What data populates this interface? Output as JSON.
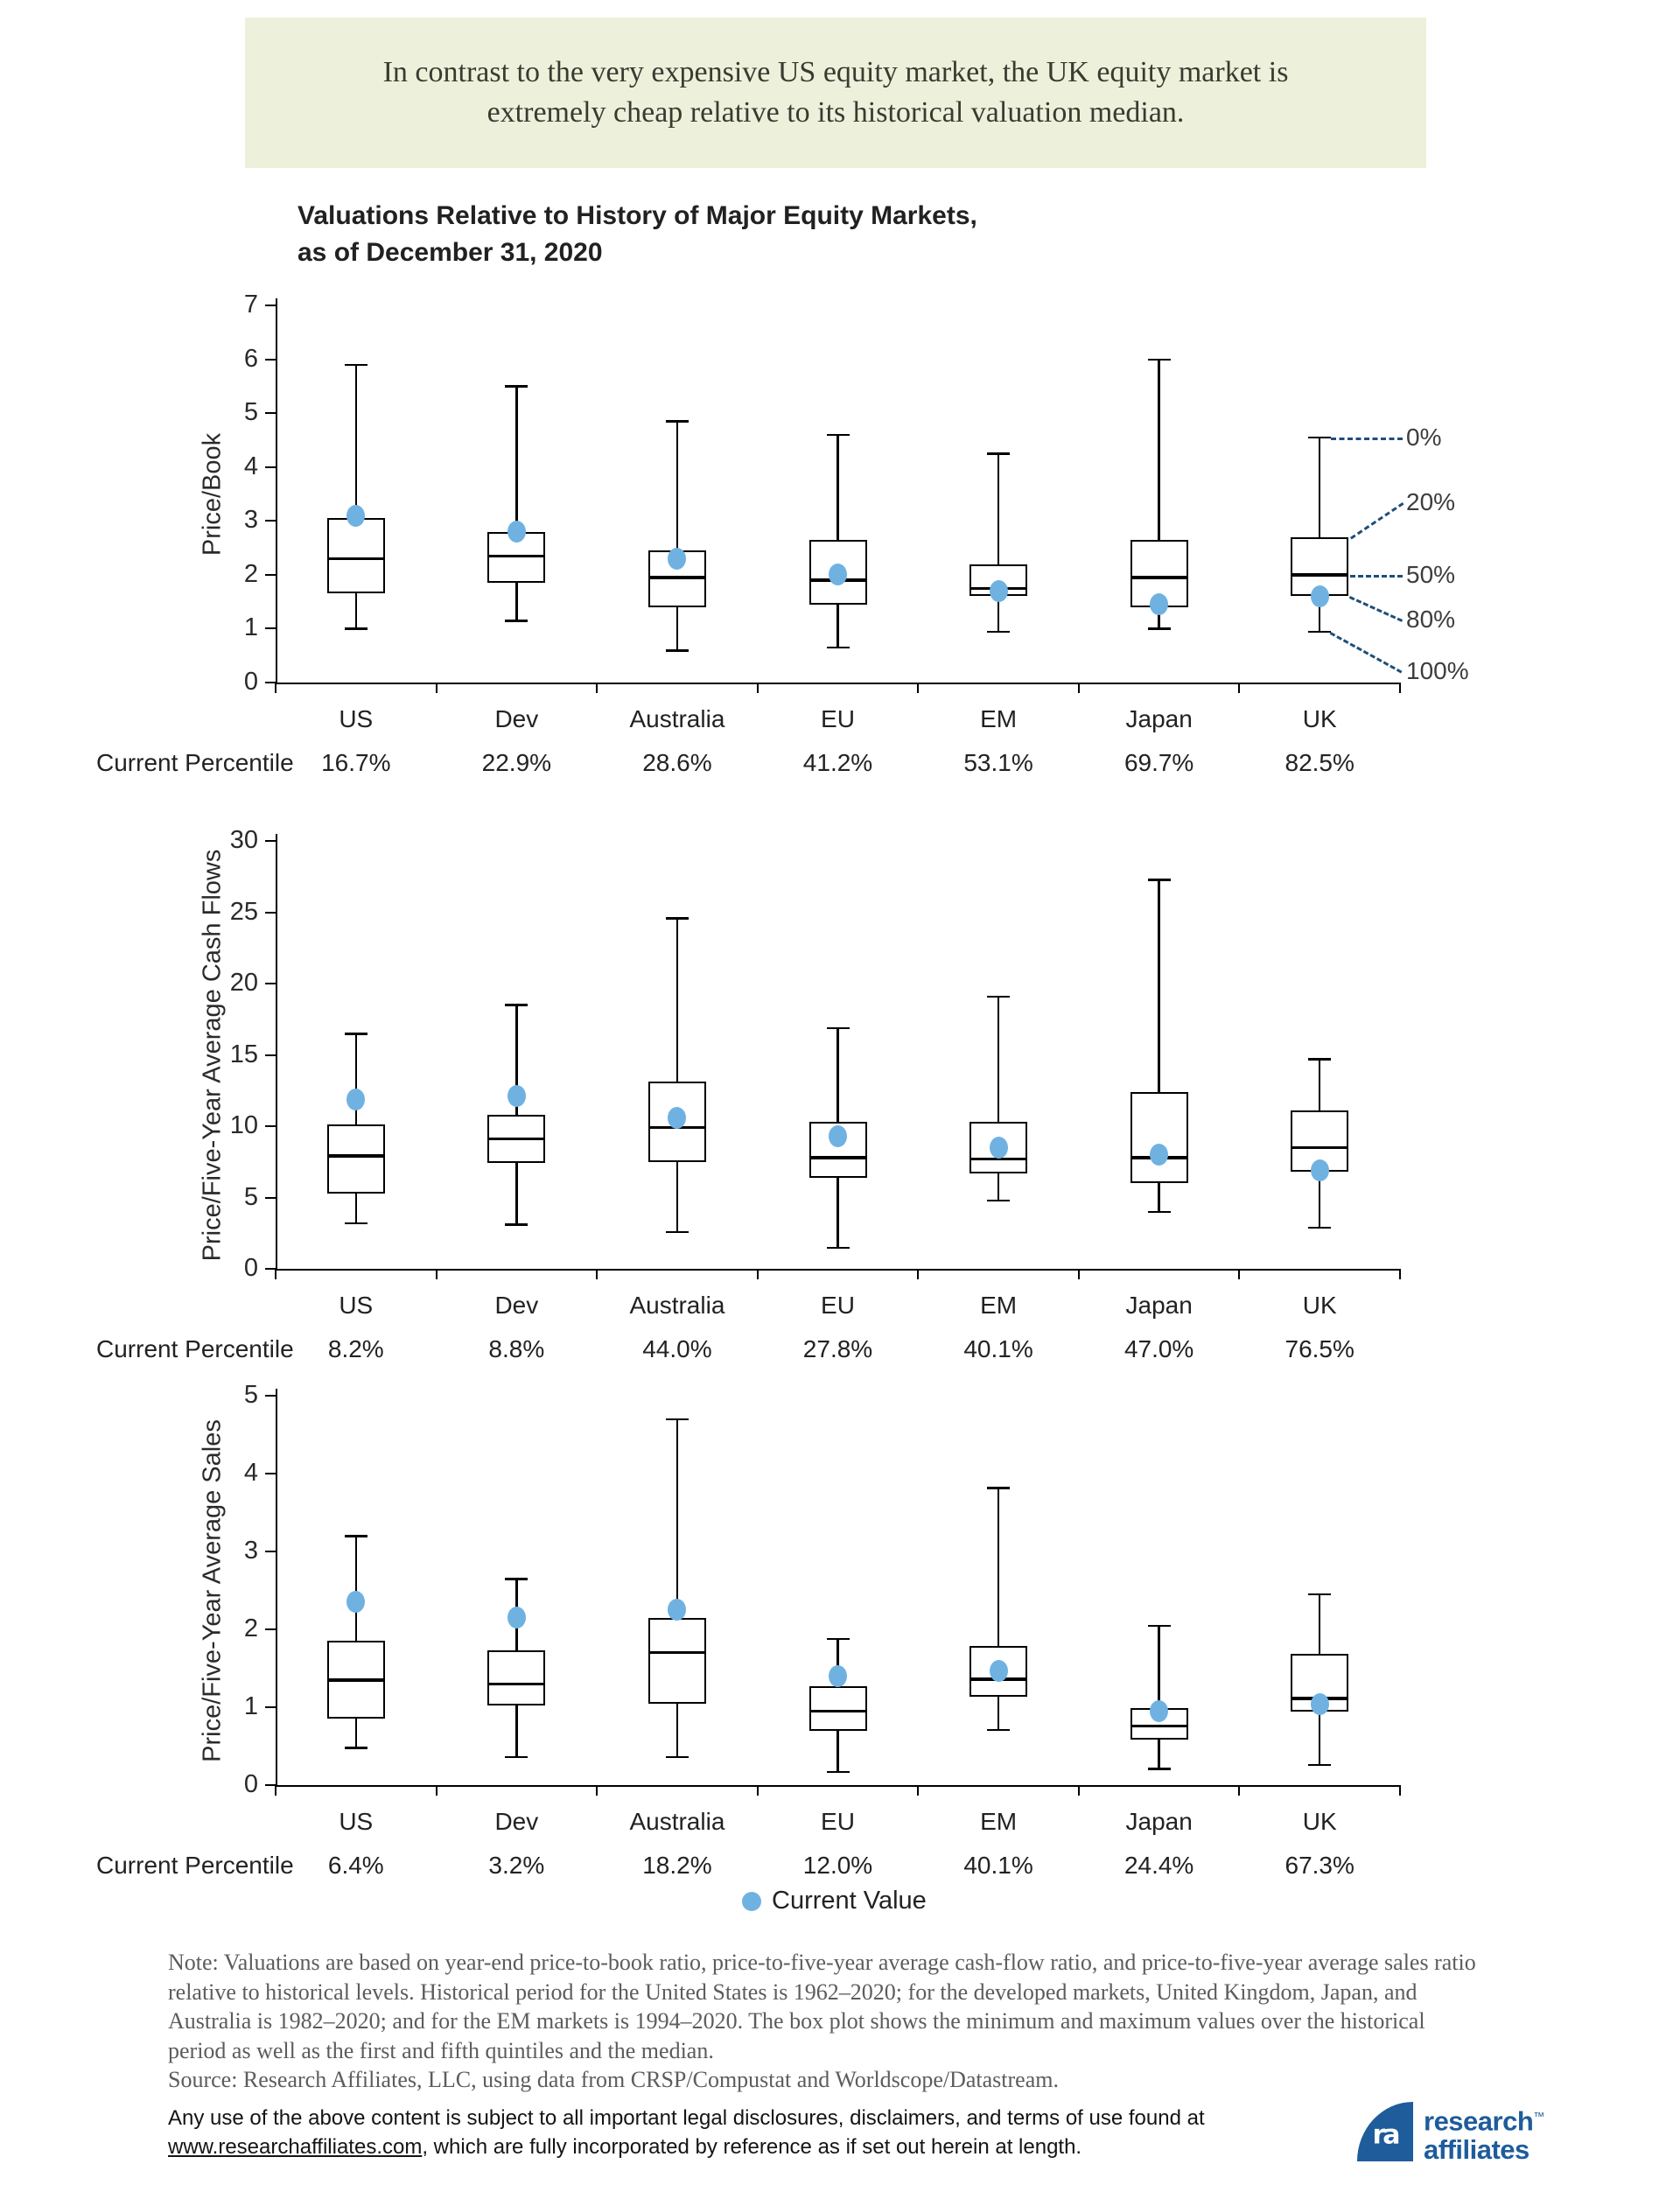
{
  "banner": {
    "line1": "In contrast to the very expensive US equity market, the UK equity market is",
    "line2": "extremely cheap relative to its historical valuation median."
  },
  "title": {
    "line1": "Valuations Relative to History of Major Equity Markets,",
    "line2": "as of December 31, 2020"
  },
  "row_label": "Current Percentile",
  "legend": {
    "label": "Current Value"
  },
  "colors": {
    "current_dot": "#6fb2e2",
    "box_line": "#000000",
    "annotation_line": "#1f4e79",
    "banner_bg": "#edf1db",
    "logo_blue": "#1e5c9b",
    "note_text": "#5c5c5c"
  },
  "chart_data": [
    {
      "type": "box",
      "ylabel": "Price/Book",
      "ylim": [
        0,
        7
      ],
      "ytick": 1,
      "legend_position": "bottom-center",
      "grid": false,
      "categories": [
        "US",
        "Dev",
        "Australia",
        "EU",
        "EM",
        "Japan",
        "UK"
      ],
      "current_percentiles": [
        "16.7%",
        "22.9%",
        "28.6%",
        "41.2%",
        "53.1%",
        "69.7%",
        "82.5%"
      ],
      "series": [
        {
          "name": "US",
          "min": 1.0,
          "p80": 1.65,
          "median": 2.3,
          "p20": 3.05,
          "max": 5.9,
          "current": 3.1
        },
        {
          "name": "Dev",
          "min": 1.15,
          "p80": 1.85,
          "median": 2.35,
          "p20": 2.8,
          "max": 5.5,
          "current": 2.8
        },
        {
          "name": "Australia",
          "min": 0.6,
          "p80": 1.4,
          "median": 1.95,
          "p20": 2.45,
          "max": 4.85,
          "current": 2.3
        },
        {
          "name": "EU",
          "min": 0.65,
          "p80": 1.45,
          "median": 1.9,
          "p20": 2.65,
          "max": 4.6,
          "current": 2.0
        },
        {
          "name": "EM",
          "min": 0.95,
          "p80": 1.6,
          "median": 1.75,
          "p20": 2.2,
          "max": 4.25,
          "current": 1.7
        },
        {
          "name": "Japan",
          "min": 1.0,
          "p80": 1.4,
          "median": 1.95,
          "p20": 2.65,
          "max": 6.0,
          "current": 1.45
        },
        {
          "name": "UK",
          "min": 0.95,
          "p80": 1.6,
          "median": 2.0,
          "p20": 2.7,
          "max": 4.55,
          "current": 1.6
        }
      ],
      "annotations": [
        {
          "label": "0%",
          "anchor": "max"
        },
        {
          "label": "20%",
          "anchor": "p20"
        },
        {
          "label": "50%",
          "anchor": "median"
        },
        {
          "label": "80%",
          "anchor": "p80"
        },
        {
          "label": "100%",
          "anchor": "min"
        }
      ]
    },
    {
      "type": "box",
      "ylabel": "Price/Five-Year Average Cash Flows",
      "ylim": [
        0,
        30
      ],
      "ytick": 5,
      "grid": false,
      "categories": [
        "US",
        "Dev",
        "Australia",
        "EU",
        "EM",
        "Japan",
        "UK"
      ],
      "current_percentiles": [
        "8.2%",
        "8.8%",
        "44.0%",
        "27.8%",
        "40.1%",
        "47.0%",
        "76.5%"
      ],
      "series": [
        {
          "name": "US",
          "min": 3.2,
          "p80": 5.3,
          "median": 7.9,
          "p20": 10.1,
          "max": 16.5,
          "current": 11.9
        },
        {
          "name": "Dev",
          "min": 3.1,
          "p80": 7.4,
          "median": 9.1,
          "p20": 10.8,
          "max": 18.5,
          "current": 12.1
        },
        {
          "name": "Australia",
          "min": 2.6,
          "p80": 7.5,
          "median": 9.9,
          "p20": 13.1,
          "max": 24.6,
          "current": 10.6
        },
        {
          "name": "EU",
          "min": 1.5,
          "p80": 6.4,
          "median": 7.8,
          "p20": 10.3,
          "max": 16.9,
          "current": 9.3
        },
        {
          "name": "EM",
          "min": 4.8,
          "p80": 6.7,
          "median": 7.7,
          "p20": 10.3,
          "max": 19.1,
          "current": 8.5
        },
        {
          "name": "Japan",
          "min": 4.0,
          "p80": 6.0,
          "median": 7.8,
          "p20": 12.4,
          "max": 27.3,
          "current": 8.0
        },
        {
          "name": "UK",
          "min": 2.9,
          "p80": 6.8,
          "median": 8.5,
          "p20": 11.1,
          "max": 14.7,
          "current": 6.9
        }
      ]
    },
    {
      "type": "box",
      "ylabel": "Price/Five-Year Average Sales",
      "ylim": [
        0,
        5
      ],
      "ytick": 1,
      "grid": false,
      "categories": [
        "US",
        "Dev",
        "Australia",
        "EU",
        "EM",
        "Japan",
        "UK"
      ],
      "current_percentiles": [
        "6.4%",
        "3.2%",
        "18.2%",
        "12.0%",
        "40.1%",
        "24.4%",
        "67.3%"
      ],
      "series": [
        {
          "name": "US",
          "min": 0.48,
          "p80": 0.85,
          "median": 1.35,
          "p20": 1.85,
          "max": 3.2,
          "current": 2.35
        },
        {
          "name": "Dev",
          "min": 0.36,
          "p80": 1.02,
          "median": 1.3,
          "p20": 1.73,
          "max": 2.65,
          "current": 2.15
        },
        {
          "name": "Australia",
          "min": 0.36,
          "p80": 1.05,
          "median": 1.7,
          "p20": 2.15,
          "max": 4.7,
          "current": 2.25
        },
        {
          "name": "EU",
          "min": 0.17,
          "p80": 0.7,
          "median": 0.95,
          "p20": 1.27,
          "max": 1.88,
          "current": 1.4
        },
        {
          "name": "EM",
          "min": 0.71,
          "p80": 1.13,
          "median": 1.36,
          "p20": 1.79,
          "max": 3.82,
          "current": 1.47
        },
        {
          "name": "Japan",
          "min": 0.21,
          "p80": 0.58,
          "median": 0.76,
          "p20": 0.99,
          "max": 2.05,
          "current": 0.95
        },
        {
          "name": "UK",
          "min": 0.26,
          "p80": 0.94,
          "median": 1.11,
          "p20": 1.69,
          "max": 2.45,
          "current": 1.04
        }
      ]
    }
  ],
  "note": {
    "lines": [
      "Note: Valuations are based on year-end price-to-book ratio, price-to-five-year average cash-flow ratio, and price-to-five-year average sales ratio",
      "relative to historical levels. Historical period for the United States is 1962–2020; for the developed markets, United Kingdom, Japan, and",
      "Australia is 1982–2020; and for the EM markets is 1994–2020. The box plot shows the minimum and maximum values over the historical",
      "period as well as the first and fifth quintiles and the median.",
      "Source: Research Affiliates, LLC, using data from CRSP/Compustat and Worldscope/Datastream."
    ]
  },
  "disclaimer": {
    "line1": "Any use of the above content is subject to all important legal disclosures, disclaimers, and terms of use found at",
    "url": "www.researchaffiliates.com",
    "line2_rest": ", which are fully incorporated by reference as if set out herein at length."
  },
  "logo": {
    "monogram": "ra",
    "line1": "research",
    "tm": "™",
    "line2": "affiliates"
  }
}
